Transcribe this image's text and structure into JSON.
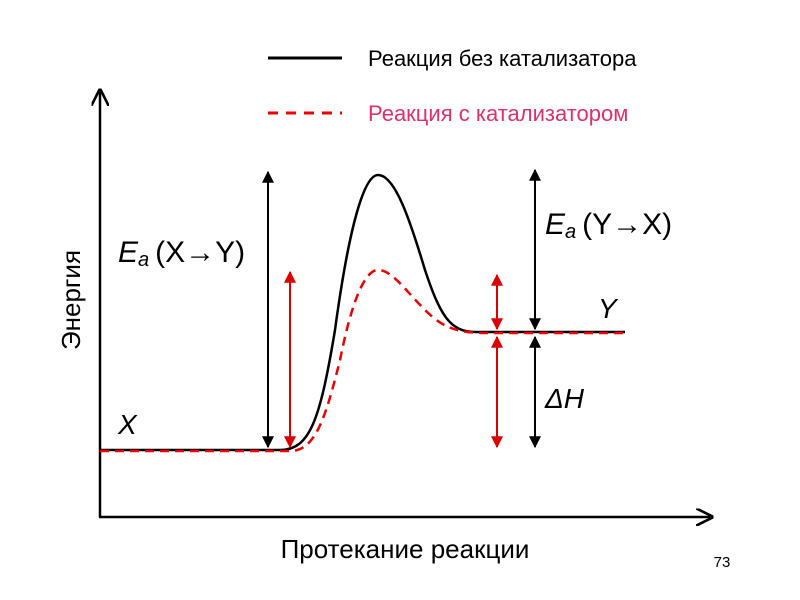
{
  "legend": {
    "items": [
      {
        "label": "Реакция без катализатора"
      },
      {
        "label": "Реакция с катализатором"
      }
    ]
  },
  "axes": {
    "y_label": "Энергия",
    "x_label": "Протекание реакции"
  },
  "annotations": {
    "ea_forward": {
      "symbol": "E",
      "subscript": "a",
      "argument": "(X→Y)"
    },
    "ea_reverse": {
      "symbol": "E",
      "subscript": "a",
      "argument": "(Y→X)"
    },
    "reactant": "X",
    "product": "Y",
    "delta_h": "ΔH"
  },
  "page_number": "73"
}
